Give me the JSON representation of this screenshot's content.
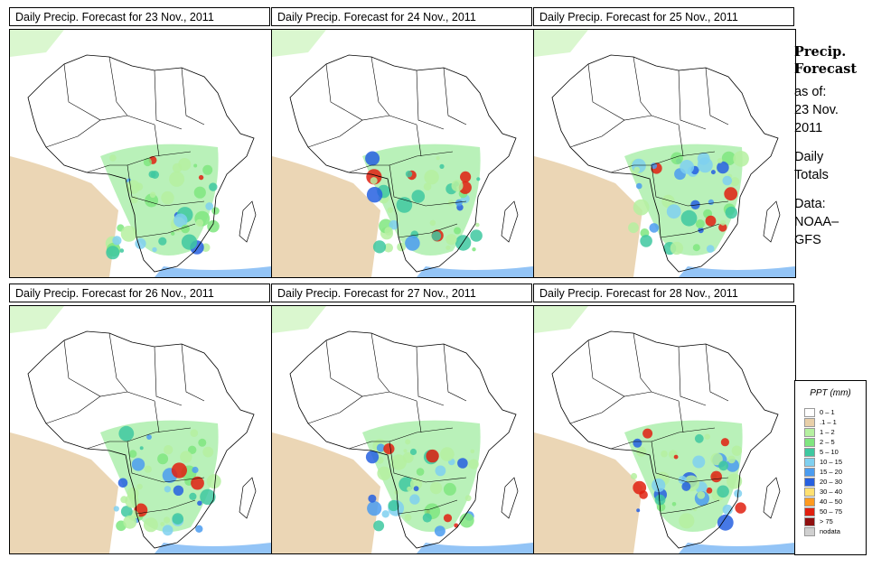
{
  "panels": [
    {
      "title": "Daily Precip. Forecast for  23 Nov., 2011"
    },
    {
      "title": "Daily Precip. Forecast for  24 Nov., 2011"
    },
    {
      "title": "Daily Precip. Forecast for  25 Nov., 2011"
    },
    {
      "title": "Daily Precip. Forecast for  26 Nov., 2011"
    },
    {
      "title": "Daily Precip. Forecast for  27 Nov., 2011"
    },
    {
      "title": "Daily Precip. Forecast for  28 Nov., 2011"
    }
  ],
  "side": {
    "title_line1": "Precip.",
    "title_line2": "Forecast",
    "asof_1": "as of:",
    "asof_2": "23 Nov.",
    "asof_3": "2011",
    "daily_1": "Daily",
    "daily_2": "Totals",
    "data_1": "Data:",
    "data_2": "NOAA–",
    "data_3": "GFS"
  },
  "legend": {
    "title": "PPT (mm)",
    "items": [
      {
        "label": "0 – 1",
        "color": "#ffffff"
      },
      {
        "label": ".1 – 1",
        "color": "#e8cfa8"
      },
      {
        "label": "1 – 2",
        "color": "#b5f0a0"
      },
      {
        "label": "2 – 5",
        "color": "#7fe67f"
      },
      {
        "label": "5 – 10",
        "color": "#3ec8a0"
      },
      {
        "label": "10 – 15",
        "color": "#7fd0f0"
      },
      {
        "label": "15 – 20",
        "color": "#4b9cf0"
      },
      {
        "label": "20 – 30",
        "color": "#2660e0"
      },
      {
        "label": "30 – 40",
        "color": "#ffe070"
      },
      {
        "label": "40 – 50",
        "color": "#ff9a20"
      },
      {
        "label": "50 – 75",
        "color": "#e02010"
      },
      {
        "label": "> 75",
        "color": "#901010"
      },
      {
        "label": "nodata",
        "color": "#d0d0d0"
      }
    ]
  },
  "colors": {
    "desert": "#e8cfa8",
    "light_green": "#b5f0a0",
    "green": "#7fe67f",
    "teal": "#3ec8a0",
    "light_blue": "#7fd0f0",
    "blue": "#4b9cf0",
    "dark_blue": "#2660e0",
    "red": "#e02010"
  }
}
